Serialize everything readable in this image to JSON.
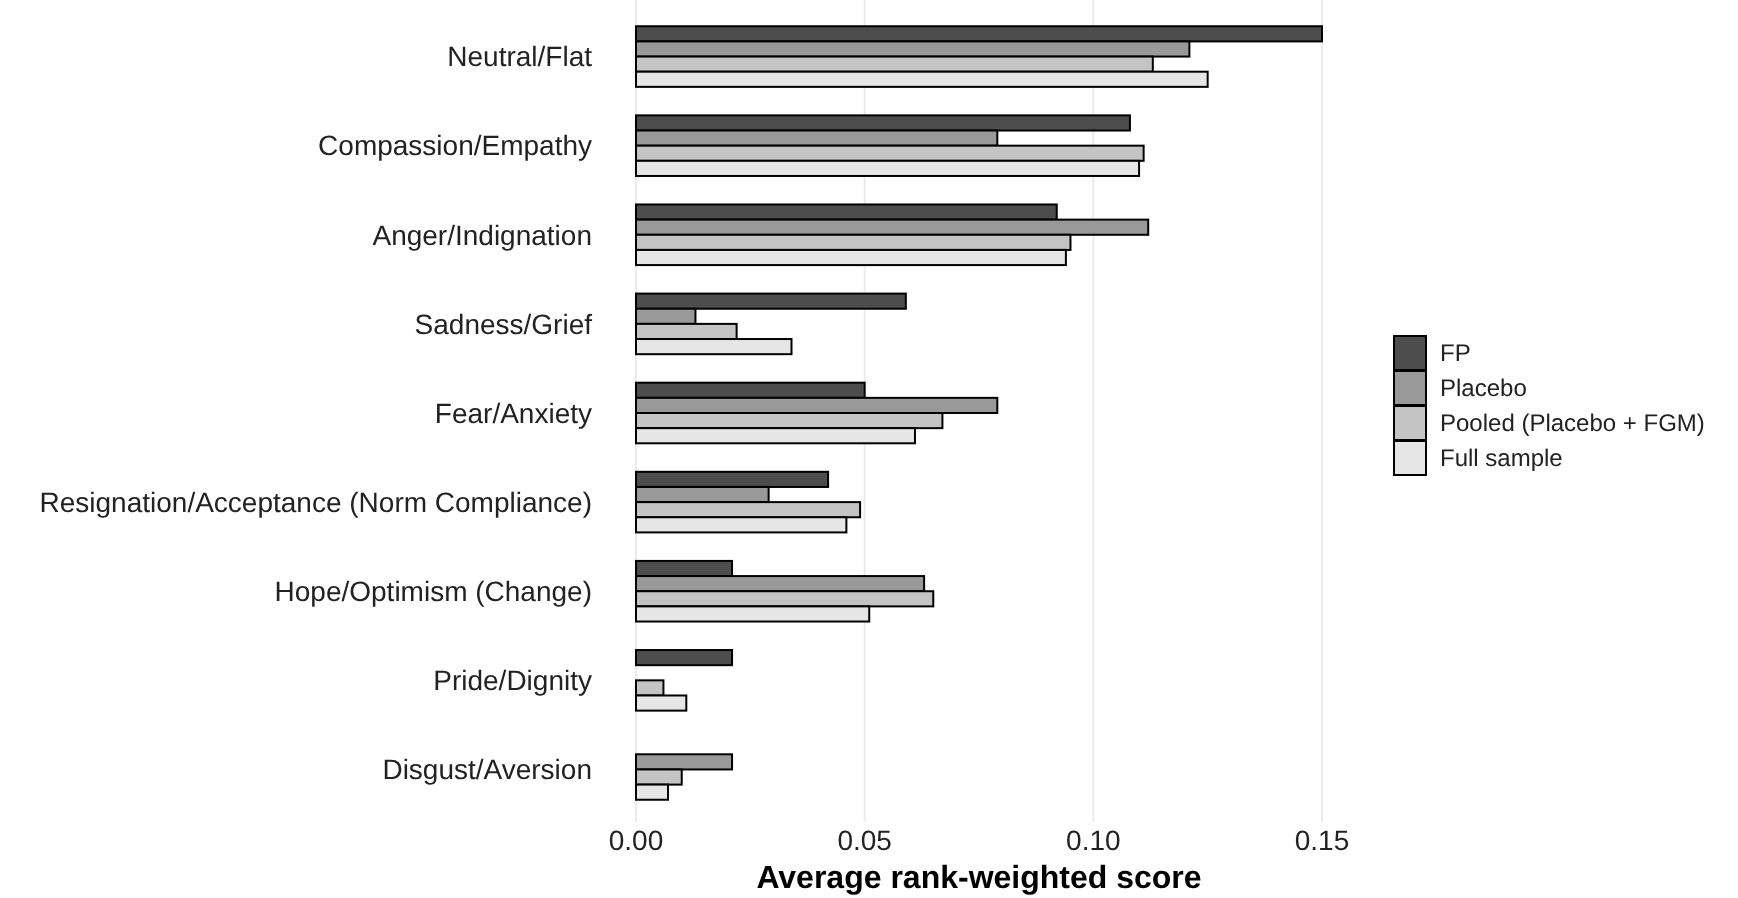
{
  "chart_data": {
    "type": "bar",
    "orientation": "horizontal",
    "xlabel": "Average rank-weighted score",
    "categories": [
      "Neutral/Flat",
      "Compassion/Empathy",
      "Anger/Indignation",
      "Sadness/Grief",
      "Fear/Anxiety",
      "Resignation/Acceptance (Norm Compliance)",
      "Hope/Optimism (Change)",
      "Pride/Dignity",
      "Disgust/Aversion"
    ],
    "series": [
      {
        "name": "FP",
        "color": "#4d4d4d",
        "values": [
          0.15,
          0.108,
          0.092,
          0.059,
          0.05,
          0.042,
          0.021,
          0.021,
          0
        ]
      },
      {
        "name": "Placebo",
        "color": "#999999",
        "values": [
          0.121,
          0.079,
          0.112,
          0.013,
          0.079,
          0.029,
          0.063,
          0,
          0.021
        ]
      },
      {
        "name": "Pooled (Placebo + FGM)",
        "color": "#c4c4c4",
        "values": [
          0.113,
          0.111,
          0.095,
          0.022,
          0.067,
          0.049,
          0.065,
          0.006,
          0.01
        ]
      },
      {
        "name": "Full sample",
        "color": "#e6e6e6",
        "values": [
          0.125,
          0.11,
          0.094,
          0.034,
          0.061,
          0.046,
          0.051,
          0.011,
          0.007
        ]
      }
    ],
    "xlim": [
      0,
      0.15
    ],
    "xticks": [
      {
        "value": 0,
        "label": "0.00"
      },
      {
        "value": 0.05,
        "label": "0.05"
      },
      {
        "value": 0.1,
        "label": "0.10"
      },
      {
        "value": 0.15,
        "label": "0.15"
      }
    ],
    "grid": "x",
    "legend": "right"
  }
}
